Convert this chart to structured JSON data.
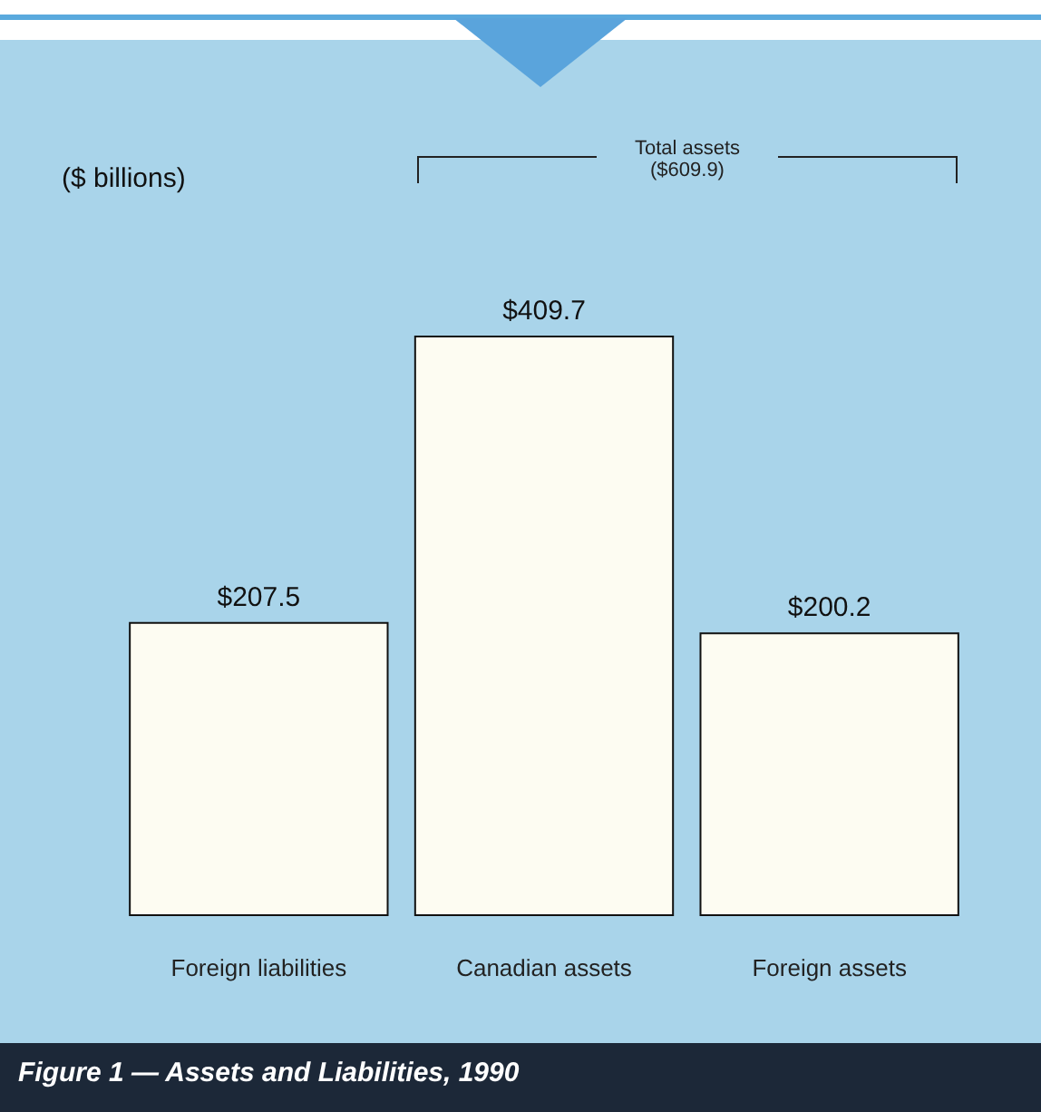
{
  "chart_data": {
    "type": "bar",
    "title": "Figure 1 — Assets and Liabilities, 1990",
    "categories": [
      "Foreign liabilities",
      "Canadian assets",
      "Foreign assets"
    ],
    "values": [
      207.5,
      409.7,
      200.2
    ],
    "value_labels": [
      "$207.5",
      "$409.7",
      "$200.2"
    ],
    "color": "#fdfcf2",
    "annotations": [
      "($ billions)",
      "Total assets ($609.9)"
    ]
  }
}
